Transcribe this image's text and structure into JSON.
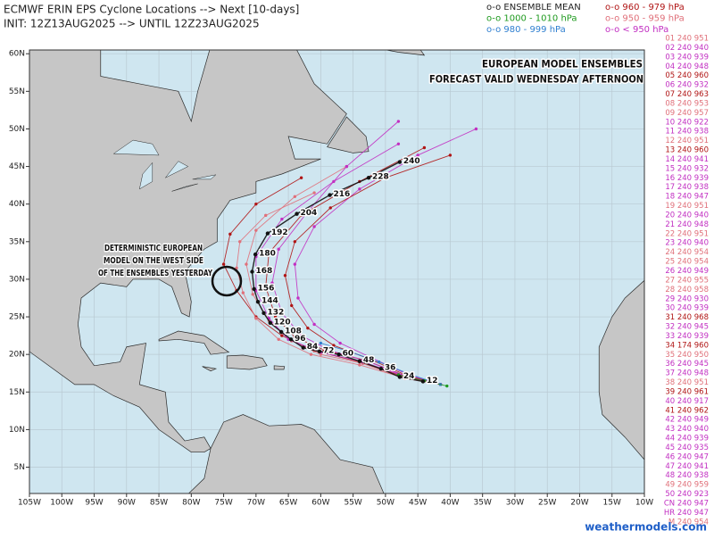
{
  "header": {
    "title": "ECMWF ERIN EPS Cyclone Locations --> Next [10-days]",
    "init": "INIT: 12Z13AUG2025 --> UNTIL 12Z23AUG2025"
  },
  "legend": [
    {
      "label": "o-o ENSEMBLE MEAN",
      "color": "#222222"
    },
    {
      "label": "o-o 1000 - 1010 hPa",
      "color": "#1e9a1e"
    },
    {
      "label": "o-o 980 - 999 hPa",
      "color": "#2f7fd0"
    },
    {
      "label": "o-o 960 - 979 hPa",
      "color": "#b01414"
    },
    {
      "label": "o-o 950 - 959 hPa",
      "color": "#e0707a"
    },
    {
      "label": "o-o < 950 hPa",
      "color": "#c22fc2"
    }
  ],
  "members": [
    {
      "text": "01 240 951",
      "color": "#e0707a"
    },
    {
      "text": "02 240 940",
      "color": "#c22fc2"
    },
    {
      "text": "03 240 939",
      "color": "#c22fc2"
    },
    {
      "text": "04 240 948",
      "color": "#c22fc2"
    },
    {
      "text": "05 240 960",
      "color": "#b01414"
    },
    {
      "text": "06 240 932",
      "color": "#c22fc2"
    },
    {
      "text": "07 240 963",
      "color": "#b01414"
    },
    {
      "text": "08 240 953",
      "color": "#e0707a"
    },
    {
      "text": "09 240 957",
      "color": "#e0707a"
    },
    {
      "text": "10 240 922",
      "color": "#c22fc2"
    },
    {
      "text": "11 240 938",
      "color": "#c22fc2"
    },
    {
      "text": "12 240 951",
      "color": "#e0707a"
    },
    {
      "text": "13 240 960",
      "color": "#b01414"
    },
    {
      "text": "14 240 941",
      "color": "#c22fc2"
    },
    {
      "text": "15 240 932",
      "color": "#c22fc2"
    },
    {
      "text": "16 240 939",
      "color": "#c22fc2"
    },
    {
      "text": "17 240 938",
      "color": "#c22fc2"
    },
    {
      "text": "18 240 947",
      "color": "#c22fc2"
    },
    {
      "text": "19 240 951",
      "color": "#e0707a"
    },
    {
      "text": "20 240 940",
      "color": "#c22fc2"
    },
    {
      "text": "21 240 948",
      "color": "#c22fc2"
    },
    {
      "text": "22 240 951",
      "color": "#e0707a"
    },
    {
      "text": "23 240 940",
      "color": "#c22fc2"
    },
    {
      "text": "24 240 954",
      "color": "#e0707a"
    },
    {
      "text": "25 240 954",
      "color": "#e0707a"
    },
    {
      "text": "26 240 949",
      "color": "#c22fc2"
    },
    {
      "text": "27 240 955",
      "color": "#e0707a"
    },
    {
      "text": "28 240 958",
      "color": "#e0707a"
    },
    {
      "text": "29 240 930",
      "color": "#c22fc2"
    },
    {
      "text": "30 240 939",
      "color": "#c22fc2"
    },
    {
      "text": "31 240 968",
      "color": "#b01414"
    },
    {
      "text": "32 240 945",
      "color": "#c22fc2"
    },
    {
      "text": "33 240 939",
      "color": "#c22fc2"
    },
    {
      "text": "34 174 960",
      "color": "#b01414"
    },
    {
      "text": "35 240 950",
      "color": "#e0707a"
    },
    {
      "text": "36 240 945",
      "color": "#c22fc2"
    },
    {
      "text": "37 240 948",
      "color": "#c22fc2"
    },
    {
      "text": "38 240 951",
      "color": "#e0707a"
    },
    {
      "text": "39 240 961",
      "color": "#b01414"
    },
    {
      "text": "40 240 917",
      "color": "#c22fc2"
    },
    {
      "text": "41 240 962",
      "color": "#b01414"
    },
    {
      "text": "42 240 949",
      "color": "#c22fc2"
    },
    {
      "text": "43 240 940",
      "color": "#c22fc2"
    },
    {
      "text": "44 240 939",
      "color": "#c22fc2"
    },
    {
      "text": "45 240 935",
      "color": "#c22fc2"
    },
    {
      "text": "46 240 947",
      "color": "#c22fc2"
    },
    {
      "text": "47 240 941",
      "color": "#c22fc2"
    },
    {
      "text": "48 240 938",
      "color": "#c22fc2"
    },
    {
      "text": "49 240 959",
      "color": "#e0707a"
    },
    {
      "text": "50 240 923",
      "color": "#c22fc2"
    },
    {
      "text": "CN 240 947",
      "color": "#c22fc2"
    },
    {
      "text": "HR 240 947",
      "color": "#c22fc2"
    },
    {
      "text": "M 240 954",
      "color": "#e0707a"
    }
  ],
  "map": {
    "xlim": [
      -105,
      -10
    ],
    "ylim": [
      1.5,
      60.5
    ],
    "xticks": [
      {
        "value": -105,
        "label": "105W"
      },
      {
        "value": -100,
        "label": "100W"
      },
      {
        "value": -95,
        "label": "95W"
      },
      {
        "value": -90,
        "label": "90W"
      },
      {
        "value": -85,
        "label": "85W"
      },
      {
        "value": -80,
        "label": "80W"
      },
      {
        "value": -75,
        "label": "75W"
      },
      {
        "value": -70,
        "label": "70W"
      },
      {
        "value": -65,
        "label": "65W"
      },
      {
        "value": -60,
        "label": "60W"
      },
      {
        "value": -55,
        "label": "55W"
      },
      {
        "value": -50,
        "label": "50W"
      },
      {
        "value": -45,
        "label": "45W"
      },
      {
        "value": -40,
        "label": "40W"
      },
      {
        "value": -35,
        "label": "35W"
      },
      {
        "value": -30,
        "label": "30W"
      },
      {
        "value": -25,
        "label": "25W"
      },
      {
        "value": -20,
        "label": "20W"
      },
      {
        "value": -15,
        "label": "15W"
      },
      {
        "value": -10,
        "label": "10W"
      }
    ],
    "yticks": [
      {
        "value": 5,
        "label": "5N"
      },
      {
        "value": 10,
        "label": "10N"
      },
      {
        "value": 15,
        "label": "15N"
      },
      {
        "value": 20,
        "label": "20N"
      },
      {
        "value": 25,
        "label": "25N"
      },
      {
        "value": 30,
        "label": "30N"
      },
      {
        "value": 35,
        "label": "35N"
      },
      {
        "value": 40,
        "label": "40N"
      },
      {
        "value": 45,
        "label": "45N"
      },
      {
        "value": 50,
        "label": "50N"
      },
      {
        "value": 55,
        "label": "55N"
      },
      {
        "value": 60,
        "label": "60N"
      }
    ],
    "annotation_title": [
      "EUROPEAN MODEL ENSEMBLES",
      "FORECAST VALID WEDNESDAY AFTERNOON"
    ],
    "annotation_note": [
      "DETERMINISTIC EUROPEAN",
      "MODEL ON THE WEST SIDE",
      "OF THE ENSEMBLES YESTERDAY"
    ],
    "mean_track": {
      "color": "#111111",
      "hours": [
        12,
        24,
        36,
        48,
        60,
        72,
        84,
        96,
        108,
        120,
        132,
        144,
        156,
        168,
        180,
        192,
        204,
        216,
        228,
        240
      ],
      "lon": [
        -44.2,
        -47.8,
        -50.7,
        -54.0,
        -57.2,
        -60.2,
        -62.7,
        -64.6,
        -66.1,
        -67.8,
        -68.8,
        -69.7,
        -70.3,
        -70.6,
        -70.1,
        -68.2,
        -63.7,
        -58.6,
        -52.6,
        -47.8
      ],
      "lat": [
        16.4,
        17.0,
        18.1,
        19.1,
        20.0,
        20.4,
        20.9,
        22.0,
        23.0,
        24.2,
        25.5,
        27.0,
        28.7,
        31.0,
        33.3,
        36.1,
        38.7,
        41.2,
        43.5,
        45.6
      ]
    },
    "member_tracks": [
      {
        "color": "#b01414",
        "lon": [
          -41.5,
          -47,
          -54,
          -61,
          -66,
          -70,
          -73,
          -75,
          -74,
          -70,
          -63
        ],
        "lat": [
          16,
          17,
          19,
          20.5,
          22.5,
          25,
          28.5,
          32,
          36,
          40,
          43.5
        ]
      },
      {
        "color": "#c22fc2",
        "lon": [
          -41.5,
          -46.5,
          -52,
          -57,
          -61,
          -63.5,
          -64,
          -61,
          -54,
          -45,
          -36
        ],
        "lat": [
          16,
          17.3,
          19.5,
          21.5,
          24,
          27.5,
          32,
          37,
          42,
          46.5,
          50
        ]
      },
      {
        "color": "#e0707a",
        "lon": [
          -41.5,
          -47,
          -53.5,
          -60,
          -64.5,
          -68,
          -70.5,
          -71.5,
          -70,
          -64,
          -56
        ],
        "lat": [
          16,
          16.8,
          18.8,
          20,
          21.8,
          24.5,
          28,
          32,
          36.5,
          41,
          45
        ]
      },
      {
        "color": "#b01414",
        "lon": [
          -41.5,
          -46.8,
          -53,
          -59.5,
          -64,
          -67,
          -68.5,
          -68,
          -63,
          -54,
          -44
        ],
        "lat": [
          16,
          17.1,
          19.2,
          20.6,
          22.3,
          25,
          29,
          33.5,
          38.5,
          43,
          47.5
        ]
      },
      {
        "color": "#c22fc2",
        "lon": [
          -41.5,
          -46.5,
          -52.5,
          -58.5,
          -63,
          -66,
          -67.5,
          -66.5,
          -62,
          -56,
          -48
        ],
        "lat": [
          16,
          17,
          19,
          20.5,
          22.5,
          25.5,
          29.5,
          34,
          39,
          45,
          51
        ]
      },
      {
        "color": "#e0707a",
        "lon": [
          -41.5,
          -47.2,
          -54,
          -61.5,
          -66.5,
          -70,
          -72,
          -73,
          -72.5,
          -68.5,
          -61
        ],
        "lat": [
          16,
          16.9,
          18.6,
          20,
          22,
          24.8,
          28.2,
          31.5,
          35,
          38.5,
          41.5
        ]
      },
      {
        "color": "#b01414",
        "lon": [
          -41.5,
          -46.7,
          -52.5,
          -58,
          -62,
          -64.5,
          -65.5,
          -64,
          -58.5,
          -50,
          -40
        ],
        "lat": [
          16,
          17.2,
          19.4,
          21.2,
          23.5,
          26.5,
          30.5,
          35,
          39.5,
          43.5,
          46.5
        ]
      },
      {
        "color": "#c22fc2",
        "lon": [
          -41.5,
          -47,
          -53.5,
          -60,
          -65,
          -68,
          -70,
          -70,
          -66,
          -58,
          -48
        ],
        "lat": [
          16,
          17.1,
          19,
          20.3,
          22,
          24.8,
          28.5,
          33,
          38,
          43,
          48
        ]
      },
      {
        "color": "#2f7fd0",
        "lon": [
          -41.5,
          -46,
          -51,
          -56,
          -60
        ],
        "lat": [
          16,
          17.3,
          19,
          20.5,
          21.5
        ]
      },
      {
        "color": "#1e9a1e",
        "lon": [
          -40.5,
          -44,
          -48
        ],
        "lat": [
          15.8,
          16.5,
          17.3
        ]
      }
    ]
  },
  "footer": "weathermodels.com"
}
